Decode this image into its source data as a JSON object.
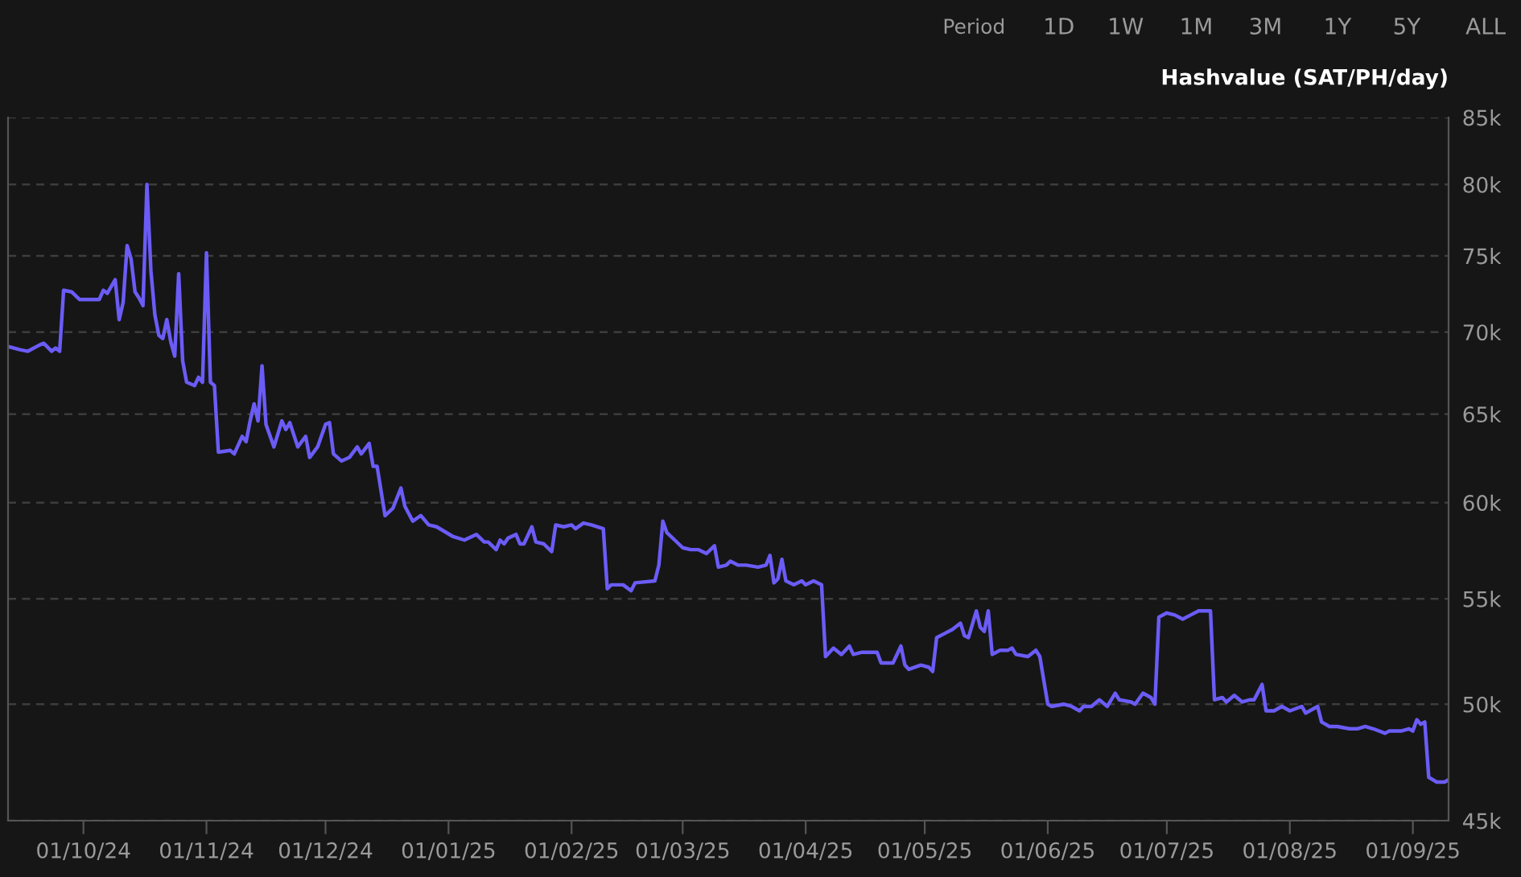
{
  "chart_data": {
    "type": "line",
    "ylabel": "Hashvalue (SAT/PH/day)",
    "annotations": [
      "Period",
      "1D",
      "1W",
      "1M",
      "3M",
      "1Y",
      "5Y",
      "ALL"
    ],
    "log": "y",
    "grid": "y",
    "legend": false,
    "marker": "none",
    "line_style": "solid",
    "xlim": [
      "2024-09-12",
      "2025-09-10"
    ],
    "xticks": [
      {
        "value": "2024-10-01",
        "label": "01/10/24"
      },
      {
        "value": "2024-11-01",
        "label": "01/11/24"
      },
      {
        "value": "2024-12-01",
        "label": "01/12/24"
      },
      {
        "value": "2025-01-01",
        "label": "01/01/25"
      },
      {
        "value": "2025-02-01",
        "label": "01/02/25"
      },
      {
        "value": "2025-03-01",
        "label": "01/03/25"
      },
      {
        "value": "2025-04-01",
        "label": "01/04/25"
      },
      {
        "value": "2025-05-01",
        "label": "01/05/25"
      },
      {
        "value": "2025-06-01",
        "label": "01/06/25"
      },
      {
        "value": "2025-07-01",
        "label": "01/07/25"
      },
      {
        "value": "2025-08-01",
        "label": "01/08/25"
      },
      {
        "value": "2025-09-01",
        "label": "01/09/25"
      }
    ],
    "ylim": [
      45000,
      85000
    ],
    "yticks": [
      {
        "value": 45000,
        "label": "45k"
      },
      {
        "value": 50000,
        "label": "50k"
      },
      {
        "value": 55000,
        "label": "55k"
      },
      {
        "value": 60000,
        "label": "60k"
      },
      {
        "value": 65000,
        "label": "65k"
      },
      {
        "value": 70000,
        "label": "70k"
      },
      {
        "value": 75000,
        "label": "75k"
      },
      {
        "value": 80000,
        "label": "80k"
      },
      {
        "value": 85000,
        "label": "85k"
      }
    ],
    "series": [
      {
        "color": "#6b5cf6",
        "x": [
          "2024-09-12",
          "2024-09-15",
          "2024-09-17",
          "2024-09-20",
          "2024-09-21",
          "2024-09-23",
          "2024-09-24",
          "2024-09-25",
          "2024-09-26",
          "2024-09-28",
          "2024-09-30",
          "2024-10-03",
          "2024-10-05",
          "2024-10-06",
          "2024-10-07",
          "2024-10-09",
          "2024-10-10",
          "2024-10-11",
          "2024-10-12",
          "2024-10-13",
          "2024-10-14",
          "2024-10-15",
          "2024-10-16",
          "2024-10-17",
          "2024-10-18",
          "2024-10-19",
          "2024-10-20",
          "2024-10-21",
          "2024-10-22",
          "2024-10-23",
          "2024-10-24",
          "2024-10-25",
          "2024-10-26",
          "2024-10-27",
          "2024-10-29",
          "2024-10-30",
          "2024-10-31",
          "2024-11-01",
          "2024-11-02",
          "2024-11-03",
          "2024-11-04",
          "2024-11-07",
          "2024-11-08",
          "2024-11-10",
          "2024-11-11",
          "2024-11-12",
          "2024-11-13",
          "2024-11-14",
          "2024-11-15",
          "2024-11-16",
          "2024-11-18",
          "2024-11-20",
          "2024-11-21",
          "2024-11-22",
          "2024-11-24",
          "2024-11-25",
          "2024-11-26",
          "2024-11-27",
          "2024-11-29",
          "2024-12-01",
          "2024-12-02",
          "2024-12-03",
          "2024-12-05",
          "2024-12-07",
          "2024-12-09",
          "2024-12-10",
          "2024-12-12",
          "2024-12-13",
          "2024-12-14",
          "2024-12-16",
          "2024-12-18",
          "2024-12-20",
          "2024-12-21",
          "2024-12-23",
          "2024-12-25",
          "2024-12-27",
          "2024-12-29",
          "2025-01-02",
          "2025-01-05",
          "2025-01-08",
          "2025-01-10",
          "2025-01-11",
          "2025-01-13",
          "2025-01-14",
          "2025-01-15",
          "2025-01-16",
          "2025-01-18",
          "2025-01-19",
          "2025-01-20",
          "2025-01-22",
          "2025-01-23",
          "2025-01-25",
          "2025-01-27",
          "2025-01-28",
          "2025-01-30",
          "2025-02-01",
          "2025-02-02",
          "2025-02-04",
          "2025-02-06",
          "2025-02-09",
          "2025-02-10",
          "2025-02-11",
          "2025-02-14",
          "2025-02-16",
          "2025-02-17",
          "2025-02-22",
          "2025-02-23",
          "2025-02-24",
          "2025-02-25",
          "2025-02-27",
          "2025-03-01",
          "2025-03-03",
          "2025-03-05",
          "2025-03-07",
          "2025-03-09",
          "2025-03-10",
          "2025-03-12",
          "2025-03-13",
          "2025-03-15",
          "2025-03-17",
          "2025-03-20",
          "2025-03-22",
          "2025-03-23",
          "2025-03-24",
          "2025-03-25",
          "2025-03-26",
          "2025-03-27",
          "2025-03-29",
          "2025-03-31",
          "2025-04-01",
          "2025-04-03",
          "2025-04-05",
          "2025-04-06",
          "2025-04-08",
          "2025-04-10",
          "2025-04-12",
          "2025-04-13",
          "2025-04-15",
          "2025-04-16",
          "2025-04-19",
          "2025-04-20",
          "2025-04-23",
          "2025-04-25",
          "2025-04-26",
          "2025-04-27",
          "2025-04-30",
          "2025-05-02",
          "2025-05-03",
          "2025-05-04",
          "2025-05-06",
          "2025-05-08",
          "2025-05-10",
          "2025-05-11",
          "2025-05-12",
          "2025-05-14",
          "2025-05-15",
          "2025-05-16",
          "2025-05-17",
          "2025-05-18",
          "2025-05-19",
          "2025-05-20",
          "2025-05-22",
          "2025-05-23",
          "2025-05-24",
          "2025-05-27",
          "2025-05-29",
          "2025-05-30",
          "2025-06-01",
          "2025-06-02",
          "2025-06-05",
          "2025-06-07",
          "2025-06-09",
          "2025-06-10",
          "2025-06-12",
          "2025-06-14",
          "2025-06-16",
          "2025-06-18",
          "2025-06-19",
          "2025-06-22",
          "2025-06-23",
          "2025-06-25",
          "2025-06-26",
          "2025-06-27",
          "2025-06-28",
          "2025-06-29",
          "2025-07-01",
          "2025-07-03",
          "2025-07-05",
          "2025-07-07",
          "2025-07-09",
          "2025-07-12",
          "2025-07-13",
          "2025-07-15",
          "2025-07-16",
          "2025-07-18",
          "2025-07-20",
          "2025-07-22",
          "2025-07-23",
          "2025-07-25",
          "2025-07-26",
          "2025-07-28",
          "2025-07-30",
          "2025-08-01",
          "2025-08-04",
          "2025-08-05",
          "2025-08-08",
          "2025-08-09",
          "2025-08-11",
          "2025-08-13",
          "2025-08-16",
          "2025-08-18",
          "2025-08-20",
          "2025-08-22",
          "2025-08-25",
          "2025-08-26",
          "2025-08-29",
          "2025-08-31",
          "2025-09-01",
          "2025-09-02",
          "2025-09-03",
          "2025-09-04",
          "2025-09-05",
          "2025-09-07",
          "2025-09-09",
          "2025-09-10"
        ],
        "values": [
          69100,
          68900,
          68800,
          69200,
          69300,
          68800,
          69000,
          68800,
          72700,
          72600,
          72100,
          72100,
          72100,
          72700,
          72500,
          73400,
          70800,
          71900,
          75700,
          74800,
          72600,
          72200,
          71700,
          80000,
          74000,
          71100,
          69800,
          69600,
          70800,
          69400,
          68500,
          73800,
          68200,
          66900,
          66700,
          67200,
          66900,
          75200,
          66900,
          66700,
          62800,
          62900,
          62700,
          63700,
          63400,
          64600,
          65600,
          64600,
          67900,
          64400,
          63100,
          64600,
          64100,
          64500,
          63100,
          63400,
          63700,
          62500,
          63100,
          64400,
          64500,
          62700,
          62300,
          62500,
          63100,
          62700,
          63300,
          62000,
          62000,
          59300,
          59700,
          60800,
          59800,
          59000,
          59300,
          58800,
          58700,
          58200,
          58000,
          58300,
          57900,
          57900,
          57500,
          58000,
          57800,
          58100,
          58300,
          57800,
          57800,
          58700,
          57900,
          57800,
          57400,
          58800,
          58700,
          58800,
          58600,
          58900,
          58800,
          58600,
          55500,
          55700,
          55700,
          55400,
          55800,
          55900,
          56700,
          59000,
          58400,
          58000,
          57600,
          57500,
          57500,
          57300,
          57700,
          56600,
          56700,
          56900,
          56700,
          56700,
          56600,
          56700,
          57200,
          55800,
          56000,
          57000,
          55900,
          55700,
          55900,
          55700,
          55900,
          55700,
          52200,
          52600,
          52300,
          52700,
          52300,
          52400,
          52400,
          52400,
          51900,
          51900,
          52700,
          51800,
          51600,
          51800,
          51700,
          51500,
          53100,
          53300,
          53500,
          53800,
          53200,
          53100,
          54400,
          53600,
          53400,
          54400,
          52300,
          52400,
          52500,
          52500,
          52600,
          52300,
          52200,
          52500,
          52200,
          50000,
          49900,
          50000,
          49900,
          49700,
          49900,
          49900,
          50200,
          49900,
          50500,
          50200,
          50100,
          50000,
          50500,
          50400,
          50300,
          50000,
          54100,
          54300,
          54200,
          54000,
          54200,
          54400,
          54400,
          50200,
          50300,
          50100,
          50400,
          50100,
          50200,
          50200,
          50900,
          49700,
          49700,
          49900,
          49700,
          49900,
          49600,
          49900,
          49200,
          49000,
          49000,
          48900,
          48900,
          49000,
          48900,
          48700,
          48800,
          48800,
          48900,
          48800,
          49300,
          49100,
          49200,
          46800,
          46600,
          46600,
          46700
        ]
      }
    ]
  }
}
